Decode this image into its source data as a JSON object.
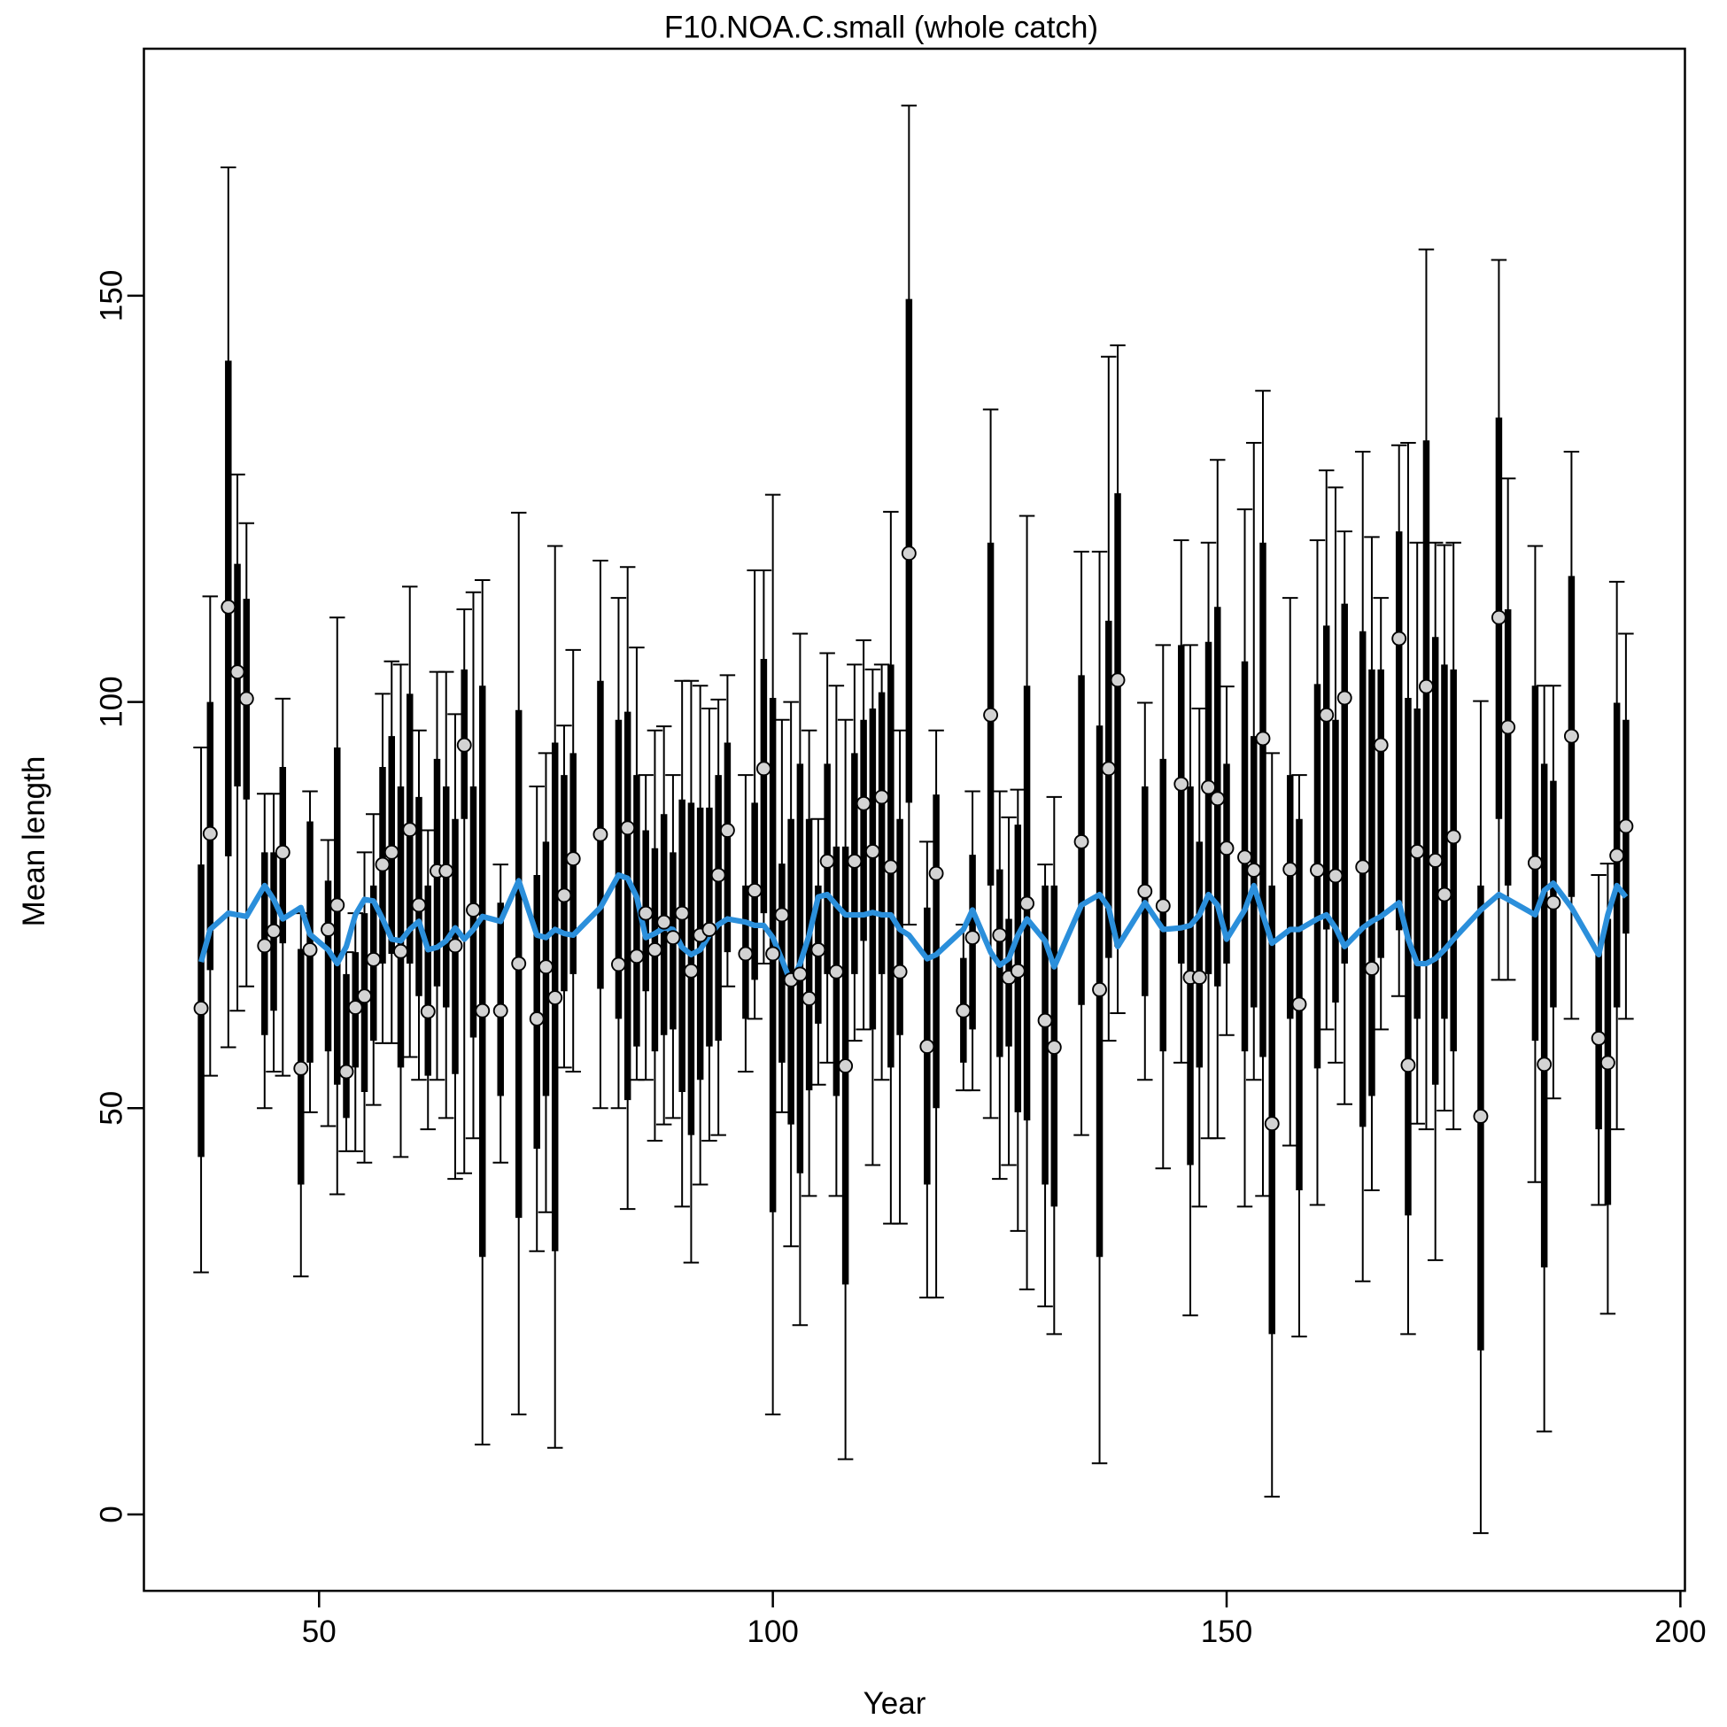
{
  "chart_data": {
    "type": "errorbar",
    "title": "F10.NOA.C.small (whole catch)",
    "xlabel": "Year",
    "ylabel": "Mean length",
    "xlim": [
      30.7,
      200.5
    ],
    "ylim": [
      -9.4,
      180.4
    ],
    "xticks": [
      50,
      100,
      150,
      200
    ],
    "yticks": [
      0,
      50,
      100,
      150
    ],
    "point_color": "#d3d3d3",
    "bar_color": "#000000",
    "line_color": "#2b8fdb",
    "x": [
      37,
      38,
      40,
      41,
      42,
      44,
      45,
      46,
      48,
      49,
      51,
      52,
      53,
      54,
      55,
      56,
      57,
      58,
      59,
      60,
      61,
      62,
      63,
      64,
      65,
      66,
      67,
      68,
      70,
      72,
      74,
      75,
      76,
      77,
      78,
      81,
      83,
      84,
      85,
      86,
      87,
      88,
      89,
      90,
      91,
      92,
      93,
      94,
      95,
      97,
      98,
      99,
      100,
      101,
      102,
      103,
      104,
      105,
      106,
      107,
      108,
      109,
      110,
      111,
      112,
      113,
      114,
      115,
      117,
      118,
      121,
      122,
      124,
      125,
      126,
      127,
      128,
      130,
      131,
      134,
      136,
      137,
      138,
      141,
      143,
      145,
      146,
      147,
      148,
      149,
      150,
      152,
      153,
      154,
      155,
      157,
      158,
      160,
      161,
      162,
      163,
      165,
      166,
      167,
      169,
      170,
      171,
      172,
      173,
      174,
      175,
      178,
      180,
      181,
      184,
      185,
      186,
      188,
      191,
      192,
      193,
      194
    ],
    "values": [
      62.3,
      83.8,
      111.7,
      103.7,
      100.4,
      70,
      71.8,
      81.5,
      54.9,
      69.5,
      72,
      75,
      54.5,
      62.4,
      63.8,
      68.3,
      80,
      81.5,
      69.3,
      84.3,
      75,
      61.9,
      79.2,
      79.2,
      70,
      94.7,
      74.4,
      62,
      62,
      67.8,
      61,
      67.4,
      63.6,
      76.2,
      80.7,
      83.7,
      67.7,
      84.5,
      68.7,
      74,
      69.5,
      72.9,
      71,
      74,
      66.9,
      71.3,
      72,
      78.7,
      84.2,
      69,
      76.8,
      91.8,
      69,
      73.8,
      65.8,
      66.5,
      63.5,
      69.5,
      80.4,
      66.8,
      55.2,
      80.4,
      87.5,
      81.6,
      88.3,
      79.7,
      66.8,
      118.3,
      57.6,
      78.9,
      62,
      71,
      98.4,
      71.3,
      66.1,
      66.9,
      75.2,
      60.8,
      57.5,
      82.8,
      64.6,
      91.8,
      102.7,
      76.7,
      74.9,
      89.9,
      66.1,
      66.1,
      89.5,
      88.1,
      82,
      80.9,
      79.3,
      95.5,
      48.1,
      79.4,
      62.8,
      79.3,
      98.4,
      78.6,
      100.5,
      79.7,
      67.2,
      94.7,
      107.8,
      55.3,
      81.6,
      101.9,
      80.5,
      76.3,
      83.4,
      49,
      110.4,
      96.9,
      80.2,
      55.4,
      75.3,
      95.8,
      58.6,
      55.6,
      81.1,
      84.7
    ],
    "outer_lower": [
      29.8,
      54,
      57.5,
      62,
      65,
      50,
      54.5,
      54,
      29.3,
      49.5,
      47.8,
      39.4,
      44.7,
      44.7,
      43.3,
      50.4,
      58,
      58,
      44,
      56.3,
      53.5,
      47.4,
      53.5,
      48.8,
      41.3,
      42,
      46.3,
      8.6,
      43.3,
      12.3,
      32.4,
      37.2,
      8.2,
      55,
      54.5,
      50,
      50,
      37.6,
      53.5,
      53.5,
      46,
      48,
      48.8,
      37.9,
      31,
      40.6,
      46,
      46.7,
      65,
      54.5,
      61,
      67.8,
      12.3,
      49.5,
      33,
      23.3,
      39.2,
      52.9,
      55.6,
      39.2,
      6.8,
      58.3,
      59.7,
      43,
      53.5,
      35.8,
      35.8,
      72.6,
      26.7,
      26.7,
      52.2,
      52.2,
      48.8,
      41.3,
      43,
      34.9,
      27.7,
      25.6,
      22.2,
      46.7,
      6.3,
      58.3,
      61.7,
      53.5,
      42.6,
      55.6,
      24.5,
      37.9,
      46.3,
      46.3,
      59,
      37.9,
      53.5,
      39.2,
      2.2,
      45.4,
      21.9,
      38.1,
      59.7,
      55.6,
      50.5,
      28.7,
      39.9,
      59.7,
      63.8,
      22.2,
      48.1,
      47.4,
      31.3,
      49.7,
      47.4,
      -2.3,
      65.8,
      65.8,
      40.9,
      10.2,
      51.2,
      61,
      38.1,
      24.7,
      47.4,
      61
    ],
    "outer_upper": [
      94.4,
      113,
      165.8,
      128,
      122,
      88.7,
      88.7,
      100.4,
      74,
      89,
      83,
      110.4,
      69.2,
      74,
      81.5,
      86.2,
      101,
      105,
      104.6,
      114.2,
      96.5,
      84.2,
      103.7,
      103.7,
      98.5,
      111.4,
      113.5,
      115,
      80,
      123.3,
      89.6,
      93.7,
      119.2,
      97.1,
      106.4,
      117.4,
      112.8,
      116.6,
      106.7,
      91,
      96.5,
      97,
      91,
      102.6,
      102.6,
      102,
      99.2,
      100.3,
      103.3,
      91,
      116.2,
      116.2,
      125.5,
      97.8,
      100,
      108.4,
      96.5,
      85.6,
      106,
      102,
      97.8,
      104.6,
      107.6,
      104,
      104.6,
      123.4,
      96.5,
      173.4,
      82.8,
      96.5,
      72.6,
      89,
      136,
      89,
      85.8,
      89.2,
      122.9,
      80,
      88.3,
      118.5,
      118.5,
      142.5,
      143.9,
      99.9,
      107,
      119.9,
      107,
      99.2,
      119.6,
      129.8,
      101.9,
      123.7,
      131.9,
      138.3,
      93.7,
      112.8,
      91,
      119.9,
      128.5,
      126.4,
      121,
      130.8,
      120.3,
      112.8,
      131.6,
      131.9,
      119.6,
      155.7,
      119.6,
      119.3,
      119.6,
      100.1,
      154.4,
      127.5,
      119.2,
      102,
      102,
      130.8,
      78.7,
      80.1,
      114.8,
      108.4
    ],
    "inner_lower": [
      44,
      67,
      81,
      89.6,
      88,
      59,
      62,
      70.3,
      40.6,
      55.6,
      57,
      52.9,
      48.8,
      55,
      52,
      58.3,
      67.8,
      69,
      55,
      67.8,
      63.8,
      54,
      65,
      62.4,
      54.2,
      85.6,
      58.7,
      31.7,
      51.5,
      36.5,
      45,
      51.5,
      32.4,
      64.4,
      66.5,
      64.7,
      61,
      51,
      57.6,
      64.4,
      57,
      59,
      59.7,
      52,
      46.7,
      53.5,
      57.6,
      58.3,
      69.2,
      61,
      65.8,
      74,
      37.2,
      55.6,
      48,
      42,
      52.2,
      60.4,
      66.5,
      51.5,
      28.3,
      66.5,
      70.6,
      59.7,
      66.5,
      55,
      59,
      87.6,
      40.6,
      50,
      55.6,
      59.7,
      77.4,
      56.3,
      57.6,
      49.5,
      48.5,
      40.6,
      37.9,
      62.7,
      31.7,
      68.5,
      69.9,
      63.8,
      57,
      67.8,
      43,
      55,
      66.5,
      65,
      67.8,
      57,
      62.4,
      56.3,
      22.2,
      61,
      39.9,
      54.9,
      72,
      63,
      67.8,
      47.7,
      51.5,
      68.5,
      71.9,
      36.8,
      61,
      67.8,
      52.9,
      61,
      57,
      20.2,
      85.6,
      77.4,
      58.3,
      30.4,
      62.4,
      76,
      47.4,
      38.1,
      62.4,
      71.5
    ],
    "inner_upper": [
      80,
      100,
      142,
      117,
      112.7,
      81.5,
      81.5,
      92,
      69.6,
      85.3,
      78,
      94.4,
      66.5,
      69.2,
      74,
      77.4,
      92,
      95.8,
      89.6,
      101,
      88.3,
      77.4,
      93,
      89.6,
      85.6,
      104,
      89.6,
      102,
      75.3,
      99,
      78.7,
      82.8,
      95,
      91,
      93.7,
      102.6,
      97.8,
      98.8,
      91,
      84.2,
      82,
      86.2,
      81.5,
      88,
      87.6,
      87,
      87,
      91,
      95,
      77.4,
      87.6,
      105.3,
      100.5,
      80.1,
      85.6,
      92.4,
      85.6,
      77.4,
      92.4,
      82.2,
      82.2,
      93.7,
      97.8,
      99.2,
      101.2,
      104.6,
      85.6,
      149.6,
      74.7,
      88.6,
      68.5,
      81.2,
      119.6,
      79.4,
      73.3,
      84.9,
      102,
      77.4,
      77.4,
      103.3,
      97.1,
      110,
      125.7,
      89.6,
      93,
      107,
      89.6,
      82.8,
      107.4,
      111.7,
      92.4,
      105,
      95.8,
      119.6,
      77.4,
      91,
      85.6,
      102.2,
      109.4,
      97.8,
      112.1,
      108.7,
      104,
      104,
      121,
      100.5,
      99.2,
      132.2,
      108,
      104.6,
      104,
      77.4,
      135,
      111.4,
      102,
      92.4,
      90.3,
      115.5,
      69.2,
      73.3,
      99.9,
      97.8
    ],
    "expected": [
      68,
      72,
      74,
      73.8,
      73.6,
      77.4,
      75.7,
      73.3,
      74.7,
      71.4,
      69.5,
      67.8,
      69.9,
      73.8,
      75.7,
      75.5,
      73.3,
      70.8,
      70.6,
      72,
      73,
      69.5,
      69.8,
      70.6,
      72.2,
      70.8,
      72,
      73.6,
      73,
      78,
      71.3,
      71,
      72,
      71.5,
      71.3,
      74.7,
      78.7,
      78.3,
      76,
      71,
      71.5,
      72.2,
      72,
      69.8,
      68.9,
      69.5,
      71.3,
      72.6,
      73.3,
      72.9,
      72.5,
      72.5,
      71,
      68.3,
      65.4,
      67.8,
      71.3,
      76,
      76.3,
      75,
      73.8,
      73.8,
      73.8,
      74.1,
      73.8,
      73.8,
      72,
      71.3,
      68.4,
      68.9,
      72,
      74.4,
      69.2,
      67.6,
      68.4,
      71.3,
      73.3,
      70.6,
      67.4,
      75,
      76.3,
      74.7,
      69.9,
      75.3,
      72,
      72.2,
      72.5,
      73.8,
      76.3,
      75,
      70.8,
      74.4,
      77.4,
      73.8,
      70.3,
      72,
      72,
      73.3,
      73.8,
      72.2,
      69.9,
      72.2,
      73,
      73.6,
      75.3,
      70.8,
      67.8,
      67.8,
      68.4,
      69.5,
      70.8,
      74.4,
      76.3,
      75.7,
      73.8,
      76.8,
      77.7,
      74.7,
      68.9,
      73.8,
      77.4,
      76
    ]
  }
}
